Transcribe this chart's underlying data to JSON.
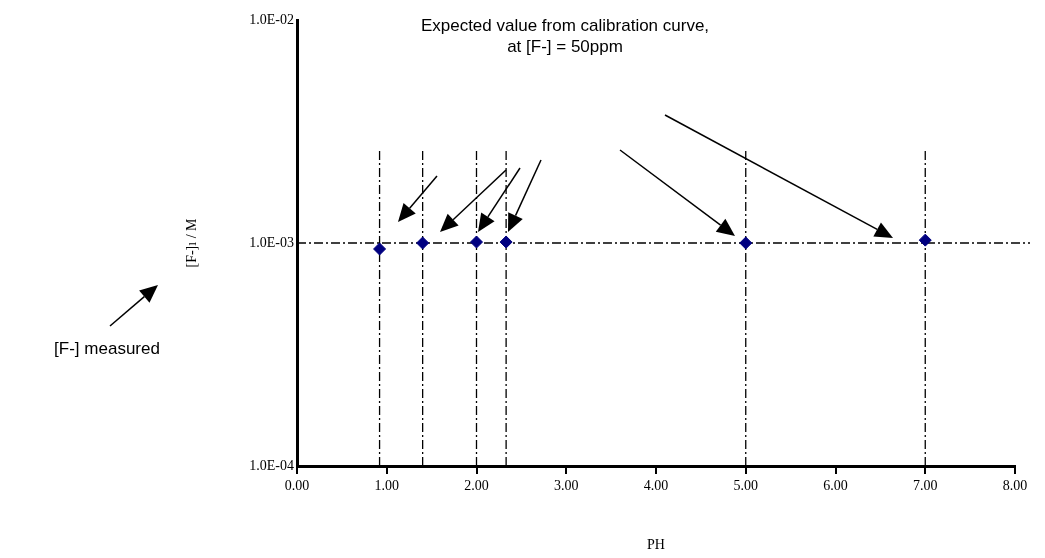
{
  "chart_data": {
    "type": "scatter",
    "xlabel": "PH",
    "ylabel": "[F-]ı / M",
    "x": [
      0.92,
      1.4,
      2.0,
      2.33,
      5.0,
      7.0
    ],
    "series": [
      {
        "color": "#000080",
        "values": [
          0.00094,
          0.001,
          0.00101,
          0.00101,
          0.001,
          0.00103
        ]
      }
    ],
    "xlim": [
      0,
      8
    ],
    "xticks": [
      {
        "value": 0,
        "label": "0.00"
      },
      {
        "value": 1,
        "label": "1.00"
      },
      {
        "value": 2,
        "label": "2.00"
      },
      {
        "value": 3,
        "label": "3.00"
      },
      {
        "value": 4,
        "label": "4.00"
      },
      {
        "value": 5,
        "label": "5.00"
      },
      {
        "value": 6,
        "label": "6.00"
      },
      {
        "value": 7,
        "label": "7.00"
      },
      {
        "value": 8,
        "label": "8.00"
      }
    ],
    "ylim": [
      0.0001,
      0.01
    ],
    "yticks": [
      {
        "value": 0.0001,
        "label": "1.0E-04"
      },
      {
        "value": 0.001,
        "label": "1.0E-03"
      },
      {
        "value": 0.01,
        "label": "1.0E-02"
      }
    ],
    "log": "y",
    "grid": false,
    "legend": false,
    "marker": "diamond",
    "ref_lines": [
      {
        "axis": "y",
        "value": 0.001,
        "color": "#000000",
        "line_style": "dashed"
      },
      {
        "axis": "x",
        "value": 0.92,
        "color": "#000000",
        "line_style": "dashed"
      },
      {
        "axis": "x",
        "value": 1.4,
        "color": "#000000",
        "line_style": "dashed"
      },
      {
        "axis": "x",
        "value": 2.0,
        "color": "#000000",
        "line_style": "dashed"
      },
      {
        "axis": "x",
        "value": 2.33,
        "color": "#000000",
        "line_style": "dashed"
      },
      {
        "axis": "x",
        "value": 5.0,
        "color": "#000000",
        "line_style": "dashed"
      },
      {
        "axis": "x",
        "value": 7.0,
        "color": "#000000",
        "line_style": "dashed"
      }
    ],
    "annotations": [
      "Expected value from calibration curve,\nat [F-] = 50ppm",
      "[F-] measured"
    ]
  }
}
